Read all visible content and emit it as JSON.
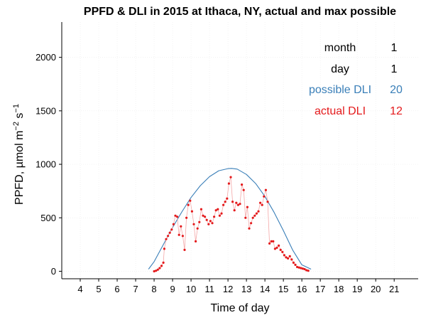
{
  "chart_data": {
    "type": "line",
    "title": "PPFD & DLI in 2015 at Ithaca, NY, actual and max possible",
    "xlabel": "Time of day",
    "ylabel": {
      "main": "PPFD, µmol m",
      "exp1": "−2",
      "mid": " s",
      "exp2": "−1"
    },
    "xlim": [
      3,
      22.3
    ],
    "ylim": [
      -70,
      2330
    ],
    "x_ticks": [
      4,
      5,
      6,
      7,
      8,
      9,
      10,
      11,
      12,
      13,
      14,
      15,
      16,
      17,
      18,
      19,
      20,
      21
    ],
    "y_ticks": [
      0,
      500,
      1000,
      1500,
      2000
    ],
    "grid": true,
    "colors": {
      "possible": "#3a7fb8",
      "actual_point": "#e41a1c",
      "actual_line": "#f4a7a7",
      "text": "#000000",
      "grid": "#ebebeb"
    },
    "annotation": {
      "month_label": "month",
      "month_value": "1",
      "day_label": "day",
      "day_value": "1",
      "possible_label": "possible DLI",
      "possible_value": "20",
      "actual_label": "actual DLI",
      "actual_value": "12"
    },
    "series": [
      {
        "key": "possible",
        "x": [
          7.7,
          8.0,
          8.5,
          9.0,
          9.5,
          10.0,
          10.5,
          11.0,
          11.5,
          12.0,
          12.2,
          12.5,
          13.0,
          13.5,
          14.0,
          14.5,
          15.0,
          15.5,
          16.0,
          16.5
        ],
        "y": [
          20,
          90,
          250,
          410,
          555,
          690,
          800,
          885,
          940,
          960,
          962,
          955,
          905,
          820,
          700,
          550,
          380,
          200,
          60,
          20
        ]
      },
      {
        "key": "actual",
        "x": [
          8.0,
          8.1,
          8.2,
          8.3,
          8.4,
          8.5,
          8.55,
          8.65,
          8.75,
          8.85,
          8.95,
          9.05,
          9.15,
          9.25,
          9.35,
          9.45,
          9.55,
          9.65,
          9.75,
          9.85,
          9.95,
          10.05,
          10.15,
          10.25,
          10.35,
          10.45,
          10.55,
          10.65,
          10.75,
          10.85,
          10.95,
          11.05,
          11.15,
          11.25,
          11.35,
          11.45,
          11.55,
          11.65,
          11.75,
          11.85,
          11.95,
          12.05,
          12.15,
          12.25,
          12.35,
          12.45,
          12.55,
          12.65,
          12.75,
          12.85,
          12.95,
          13.05,
          13.15,
          13.25,
          13.35,
          13.45,
          13.55,
          13.65,
          13.75,
          13.85,
          13.95,
          14.05,
          14.15,
          14.25,
          14.35,
          14.45,
          14.55,
          14.65,
          14.75,
          14.85,
          14.95,
          15.05,
          15.15,
          15.25,
          15.35,
          15.45,
          15.55,
          15.65,
          15.75,
          15.85,
          15.95,
          16.05,
          16.15,
          16.25,
          16.35
        ],
        "y": [
          0,
          5,
          15,
          30,
          50,
          80,
          210,
          300,
          330,
          360,
          390,
          440,
          520,
          510,
          340,
          420,
          330,
          200,
          500,
          620,
          660,
          560,
          440,
          280,
          400,
          460,
          580,
          520,
          510,
          480,
          440,
          470,
          450,
          510,
          570,
          580,
          520,
          540,
          620,
          650,
          680,
          820,
          880,
          650,
          570,
          640,
          620,
          630,
          810,
          760,
          500,
          600,
          400,
          450,
          500,
          520,
          540,
          560,
          640,
          620,
          700,
          760,
          650,
          260,
          280,
          280,
          210,
          220,
          240,
          200,
          180,
          150,
          130,
          120,
          140,
          110,
          80,
          60,
          40,
          35,
          30,
          25,
          20,
          10,
          5
        ]
      }
    ]
  }
}
